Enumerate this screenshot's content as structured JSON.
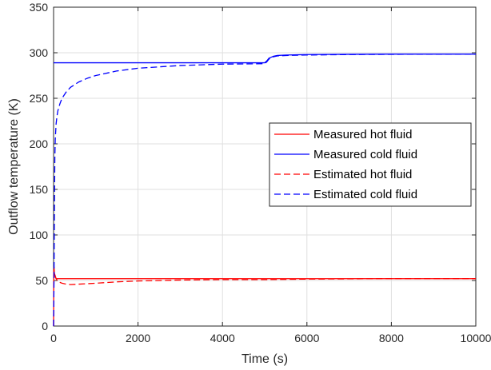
{
  "chart_data": {
    "type": "line",
    "xlabel": "Time (s)",
    "ylabel": "Outflow temperature (K)",
    "xlim": [
      0,
      10000
    ],
    "ylim": [
      0,
      350
    ],
    "xticks": [
      0,
      2000,
      4000,
      6000,
      8000,
      10000
    ],
    "yticks": [
      0,
      50,
      100,
      150,
      200,
      250,
      300,
      350
    ],
    "grid": true,
    "legend_position": "center-right",
    "series": [
      {
        "name": "Measured hot fluid",
        "color": "#ff0000",
        "dash": "solid",
        "x": [
          0,
          5,
          10,
          20,
          40,
          60,
          100,
          10000
        ],
        "y": [
          0,
          60,
          62,
          58,
          54,
          52,
          52,
          52
        ]
      },
      {
        "name": "Measured cold fluid",
        "color": "#0000ff",
        "dash": "solid",
        "x": [
          0,
          5000,
          5050,
          5100,
          5200,
          5300,
          5500,
          6000,
          7000,
          8000,
          10000
        ],
        "y": [
          289,
          289,
          291,
          294,
          296,
          297,
          297.5,
          298,
          298.3,
          298.5,
          298.5
        ]
      },
      {
        "name": "Estimated hot fluid",
        "color": "#ff0000",
        "dash": "dashed",
        "x": [
          0,
          10,
          20,
          40,
          60,
          100,
          200,
          300,
          400,
          600,
          800,
          1000,
          1500,
          2000,
          3000,
          4000,
          5000,
          6000,
          8000,
          10000
        ],
        "y": [
          0,
          65,
          58,
          55,
          52,
          49,
          47,
          46,
          45.5,
          46,
          46.5,
          47,
          48.5,
          49.5,
          50.5,
          51,
          51,
          51.5,
          52,
          52
        ]
      },
      {
        "name": "Estimated cold fluid",
        "color": "#0000ff",
        "dash": "dashed",
        "x": [
          0,
          10,
          20,
          30,
          40,
          60,
          80,
          100,
          150,
          200,
          300,
          400,
          600,
          800,
          1000,
          1500,
          2000,
          3000,
          4000,
          5000,
          5050,
          5100,
          5200,
          5300,
          5500,
          6000,
          7000,
          8000,
          10000
        ],
        "y": [
          0,
          50,
          130,
          185,
          205,
          222,
          230,
          236,
          244,
          250,
          257,
          262,
          268,
          272,
          275,
          280,
          283,
          286,
          287.5,
          288,
          290,
          293,
          295.5,
          296.5,
          297,
          297.5,
          298,
          298.3,
          298.5
        ]
      }
    ]
  }
}
